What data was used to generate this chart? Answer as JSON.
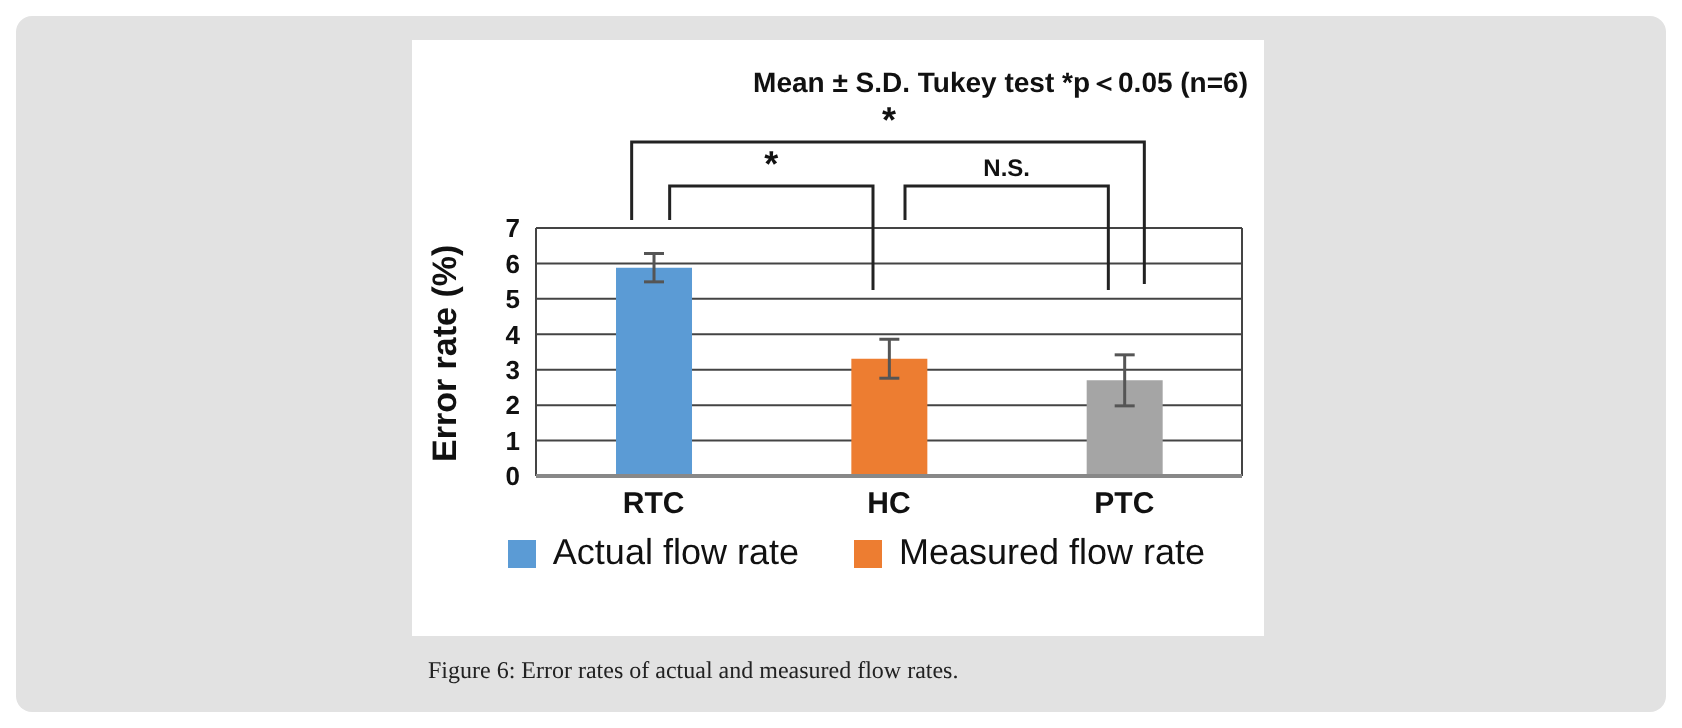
{
  "chart_data": {
    "type": "bar",
    "title": "Mean ± S.D. Tukey test *p＜0.05 (n=6)",
    "ylabel": "Error rate (%)",
    "categories": [
      "RTC",
      "HC",
      "PTC"
    ],
    "series": [
      {
        "name": "Actual flow rate",
        "color": "#5b9bd5",
        "values": [
          5.88,
          null,
          null
        ],
        "errors": [
          0.4,
          null,
          null
        ]
      },
      {
        "name": "Measured flow rate",
        "color": "#ed7d31",
        "values": [
          null,
          3.31,
          null
        ],
        "errors": [
          null,
          0.55,
          null
        ]
      },
      {
        "color": "#a5a5a5",
        "values": [
          null,
          null,
          2.7
        ],
        "errors": [
          null,
          null,
          0.72
        ]
      }
    ],
    "stacked": true,
    "ylim": [
      0,
      7
    ],
    "yticks": [
      0,
      1,
      2,
      3,
      4,
      5,
      6,
      7
    ],
    "grid": "y",
    "legend": "bottom",
    "annotations": [
      "*",
      "*",
      "N.S.",
      "Figure 6: Error rates of actual and measured flow rates."
    ]
  }
}
